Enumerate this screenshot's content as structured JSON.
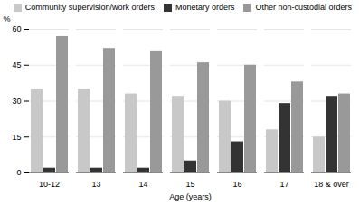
{
  "chart_data": {
    "type": "bar",
    "xlabel": "Age (years)",
    "ylabel": "%",
    "categories": [
      "10-12",
      "13",
      "14",
      "15",
      "16",
      "17",
      "18 & over"
    ],
    "series": [
      {
        "name": "Community supervision/work orders",
        "color": "#c8c8c8",
        "values": [
          35,
          35,
          33,
          32,
          30,
          18,
          15
        ]
      },
      {
        "name": "Monetary orders",
        "color": "#333333",
        "values": [
          2,
          2,
          2,
          5,
          13,
          29,
          32
        ]
      },
      {
        "name": "Other non-custodial orders",
        "color": "#999999",
        "values": [
          57,
          52,
          51,
          46,
          45,
          38,
          33
        ]
      }
    ],
    "ylim": [
      0,
      60
    ],
    "yticks": [
      0,
      15,
      30,
      45,
      60
    ],
    "grid": true,
    "legend": "upper right"
  }
}
